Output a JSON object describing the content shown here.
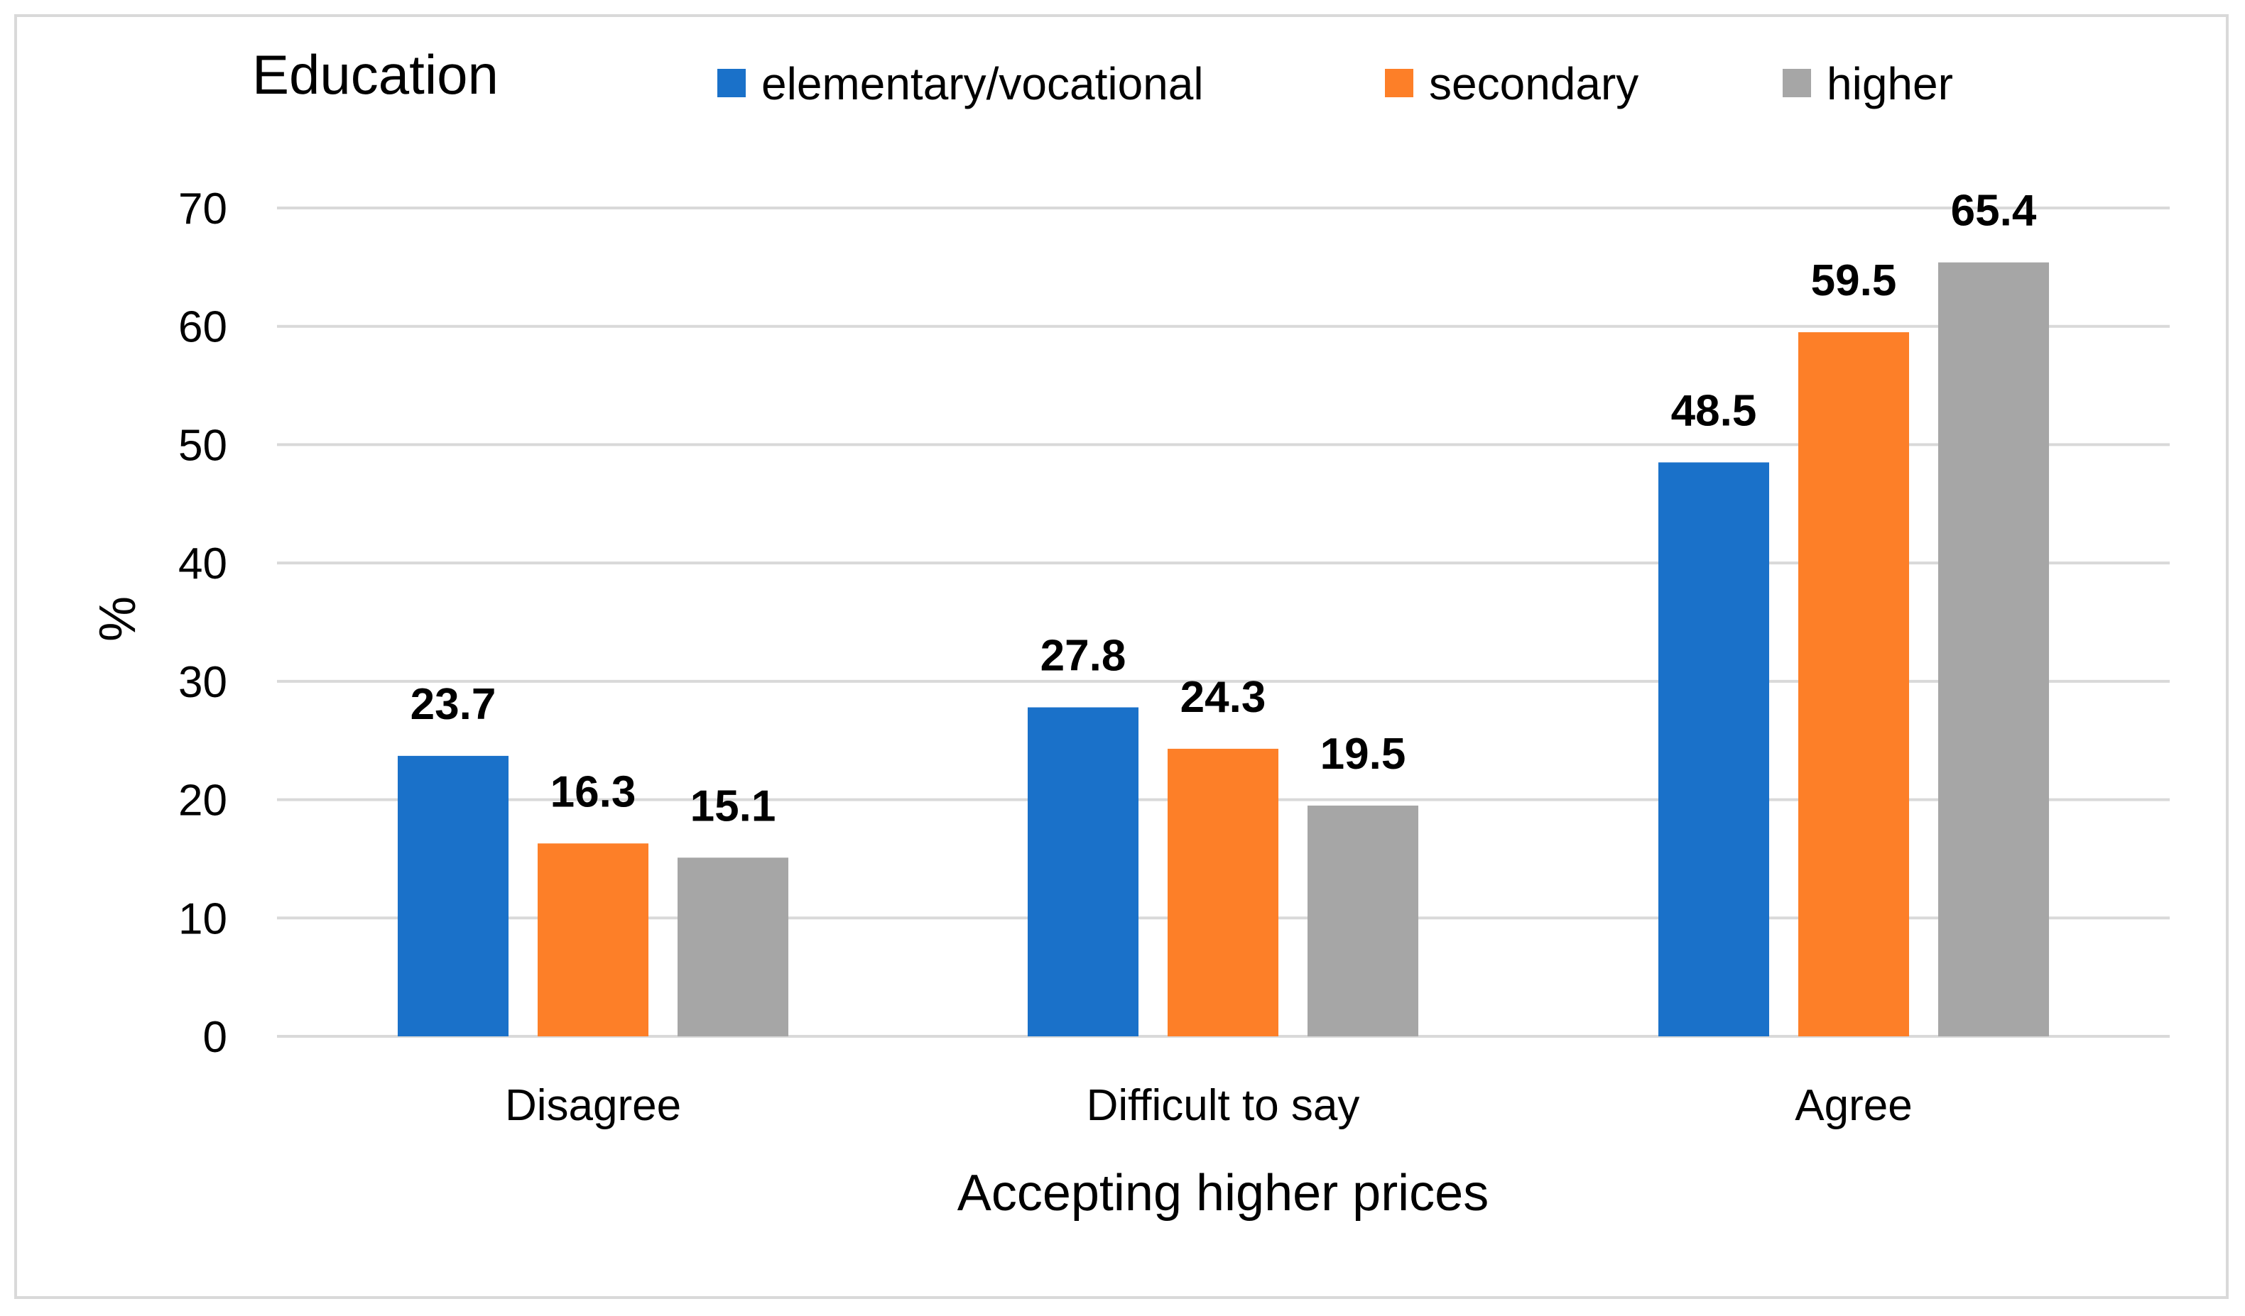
{
  "chart_data": {
    "type": "bar",
    "title": "Education",
    "xlabel": "Accepting higher prices",
    "ylabel": "%",
    "ylim": [
      0,
      70
    ],
    "yticks": [
      0,
      10,
      20,
      30,
      40,
      50,
      60,
      70
    ],
    "grid": true,
    "legend_position": "top",
    "categories": [
      "Disagree",
      "Difficult to say",
      "Agree"
    ],
    "series": [
      {
        "name": "elementary/vocational",
        "color": "#1a71c9",
        "values": [
          23.7,
          27.8,
          48.5
        ],
        "labels": [
          "23.7",
          "27.8",
          "48.5"
        ]
      },
      {
        "name": "secondary",
        "color": "#fd7f28",
        "values": [
          16.3,
          24.3,
          59.5
        ],
        "labels": [
          "16.3",
          "24.3",
          "59.5"
        ]
      },
      {
        "name": "higher",
        "color": "#a6a6a6",
        "values": [
          15.1,
          19.5,
          65.4
        ],
        "labels": [
          "15.1",
          "19.5",
          "65.4"
        ]
      }
    ],
    "gridline_color": "#d9d9d9"
  }
}
